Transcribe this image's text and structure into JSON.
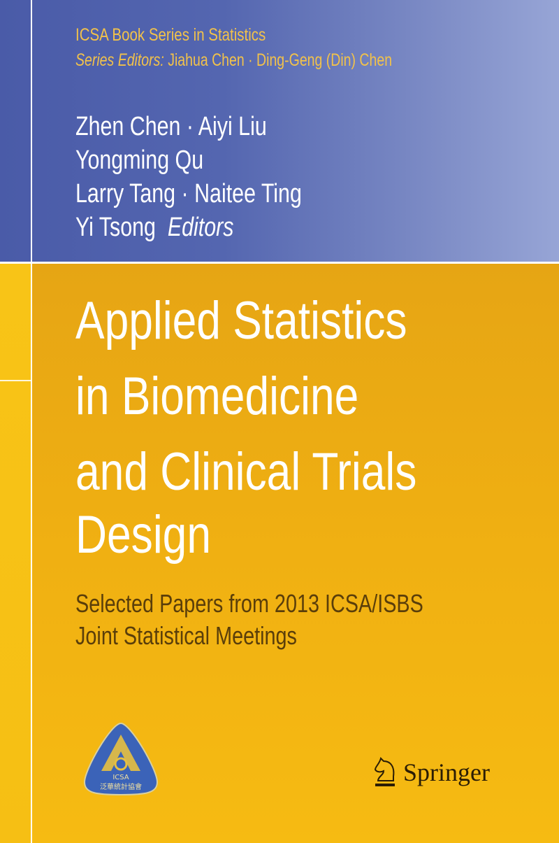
{
  "series": {
    "title": "ICSA Book Series in Statistics",
    "editors_label": "Series Editors:",
    "editors_names": "Jiahua Chen · Ding-Geng (Din) Chen"
  },
  "editors": {
    "lines": [
      "Zhen Chen · Aiyi Liu",
      "Yongming Qu",
      "Larry Tang · Naitee Ting",
      "Yi Tsong"
    ],
    "role": "Editors"
  },
  "title": {
    "lines": [
      "Applied Statistics",
      "in Biomedicine",
      "and Clinical Trials",
      "Design"
    ]
  },
  "subtitle": {
    "lines": [
      "Selected Papers from 2013 ICSA/ISBS",
      "Joint Statistical Meetings"
    ]
  },
  "logo": {
    "text": "ICSA",
    "chinese": "泛華統計協會",
    "color": "#3b63b8"
  },
  "publisher": {
    "name": "Springer"
  },
  "colors": {
    "blue": "#4a5ba8",
    "yellow": "#f0b012",
    "series_text": "#f2c24a"
  }
}
